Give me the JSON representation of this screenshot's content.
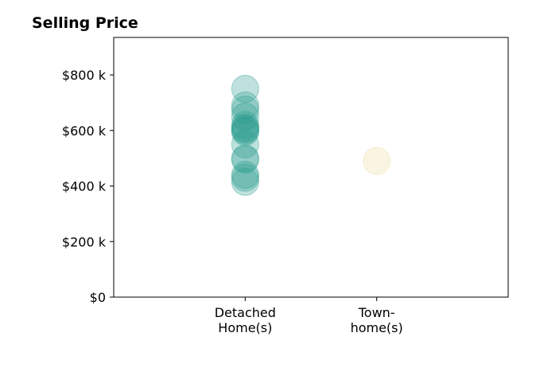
{
  "chart_data": {
    "type": "scatter",
    "title": "Selling Price",
    "xlabel": "",
    "ylabel": "",
    "categories": [
      [
        "Detached",
        "Home(s)"
      ],
      [
        "Town-",
        "home(s)"
      ]
    ],
    "yticks": [
      {
        "value": 0,
        "label": "$0"
      },
      {
        "value": 200,
        "label": "$200 k"
      },
      {
        "value": 400,
        "label": "$400 k"
      },
      {
        "value": 600,
        "label": "$600 k"
      },
      {
        "value": 800,
        "label": "$800 k"
      }
    ],
    "ylim": [
      0,
      935
    ],
    "xlim": [
      -1,
      2
    ],
    "grid": false,
    "series": [
      {
        "category": 0,
        "color": "#2a9d8f",
        "values": [
          750,
          690,
          675,
          650,
          620,
          610,
          605,
          600,
          595,
          550,
          500,
          495,
          440,
          430,
          415
        ]
      },
      {
        "category": 1,
        "color": "#f0d9a0",
        "values": [
          490
        ]
      }
    ]
  }
}
